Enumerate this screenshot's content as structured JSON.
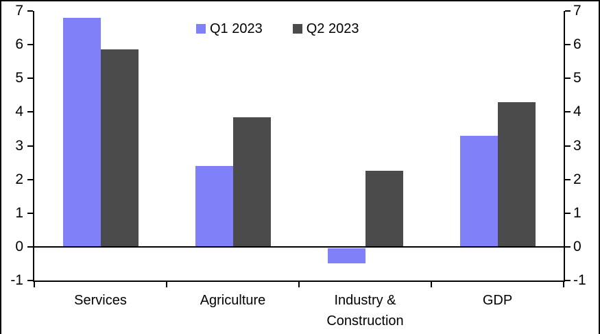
{
  "chart_data": {
    "type": "bar",
    "title": "",
    "categories": [
      "Services",
      "Agriculture",
      "Industry &\nConstruction",
      "GDP"
    ],
    "series": [
      {
        "name": "Q1 2023",
        "color": "#8080F8",
        "values": [
          6.8,
          2.4,
          -0.45,
          3.3
        ]
      },
      {
        "name": "Q2 2023",
        "color": "#4B4B4B",
        "values": [
          5.85,
          3.85,
          2.25,
          4.3
        ]
      }
    ],
    "ylim": [
      -1,
      7
    ],
    "y_axis_left_ticks": [
      "7",
      "6",
      "5",
      "4",
      "3",
      "2",
      "1",
      "0",
      "-1"
    ],
    "y_axis_right_ticks": [
      "7",
      "6",
      "5",
      "4",
      "3",
      "2",
      "1",
      "0",
      "-1"
    ],
    "grid": false,
    "legend_position": "top-center",
    "axis_color": "#000000",
    "background_color": "#FFFFFF"
  }
}
